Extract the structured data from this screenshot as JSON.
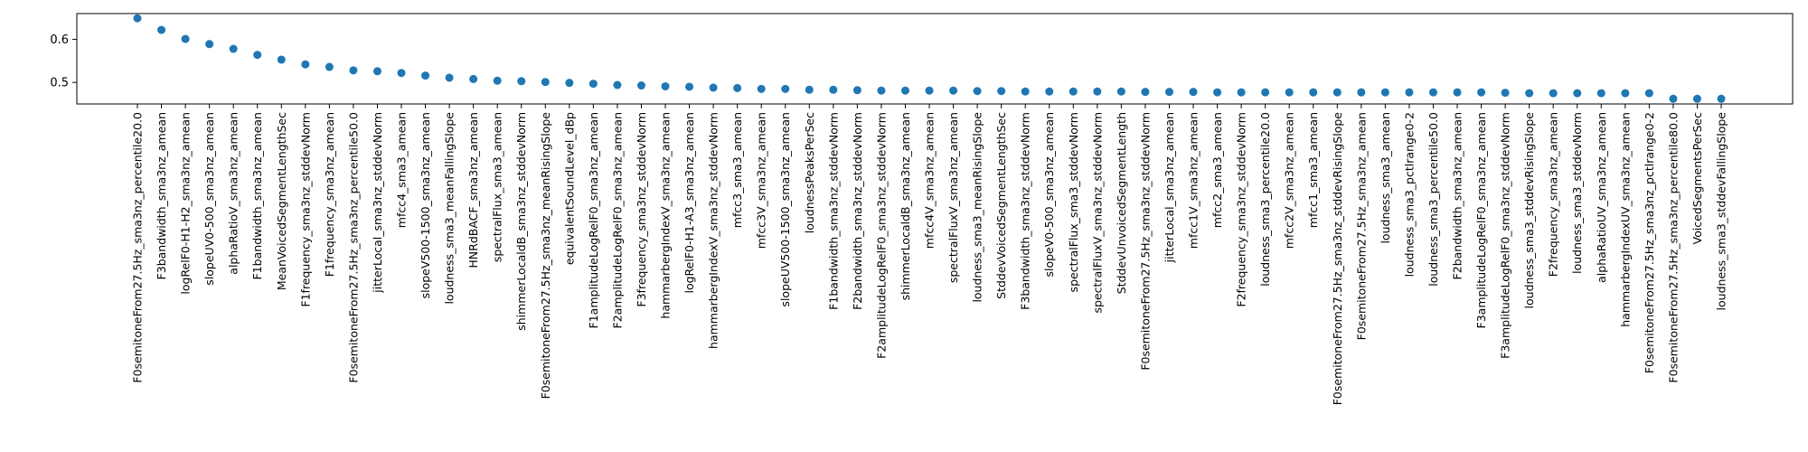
{
  "chart_data": {
    "type": "scatter",
    "title": "",
    "xlabel": "",
    "ylabel": "",
    "ylim": [
      0.45,
      0.66
    ],
    "yticks": [
      "0.5",
      "0.6"
    ],
    "grid": false,
    "marker_color": "#1f77b4",
    "categories": [
      "F0semitoneFrom27.5Hz_sma3nz_percentile20.0",
      "F3bandwidth_sma3nz_amean",
      "logRelF0-H1-H2_sma3nz_amean",
      "slopeUV0-500_sma3nz_amean",
      "alphaRatioV_sma3nz_amean",
      "F1bandwidth_sma3nz_amean",
      "MeanVoicedSegmentLengthSec",
      "F1frequency_sma3nz_stddevNorm",
      "F1frequency_sma3nz_amean",
      "F0semitoneFrom27.5Hz_sma3nz_percentile50.0",
      "jitterLocal_sma3nz_stddevNorm",
      "mfcc4_sma3_amean",
      "slopeV500-1500_sma3nz_amean",
      "loudness_sma3_meanFallingSlope",
      "HNRdBACF_sma3nz_amean",
      "spectralFlux_sma3_amean",
      "shimmerLocaldB_sma3nz_stddevNorm",
      "F0semitoneFrom27.5Hz_sma3nz_meanRisingSlope",
      "equivalentSoundLevel_dBp",
      "F1amplitudeLogRelF0_sma3nz_amean",
      "F2amplitudeLogRelF0_sma3nz_amean",
      "F3frequency_sma3nz_stddevNorm",
      "hammarbergIndexV_sma3nz_amean",
      "logRelF0-H1-A3_sma3nz_amean",
      "hammarbergIndexV_sma3nz_stddevNorm",
      "mfcc3_sma3_amean",
      "mfcc3V_sma3nz_amean",
      "slopeUV500-1500_sma3nz_amean",
      "loudnessPeaksPerSec",
      "F1bandwidth_sma3nz_stddevNorm",
      "F2bandwidth_sma3nz_stddevNorm",
      "F2amplitudeLogRelF0_sma3nz_stddevNorm",
      "shimmerLocaldB_sma3nz_amean",
      "mfcc4V_sma3nz_amean",
      "spectralFluxV_sma3nz_amean",
      "loudness_sma3_meanRisingSlope",
      "StddevVoicedSegmentLengthSec",
      "F3bandwidth_sma3nz_stddevNorm",
      "slopeV0-500_sma3nz_amean",
      "spectralFlux_sma3_stddevNorm",
      "spectralFluxV_sma3nz_stddevNorm",
      "StddevUnvoicedSegmentLength",
      "F0semitoneFrom27.5Hz_sma3nz_stddevNorm",
      "jitterLocal_sma3nz_amean",
      "mfcc1V_sma3nz_amean",
      "mfcc2_sma3_amean",
      "F2frequency_sma3nz_stddevNorm",
      "loudness_sma3_percentile20.0",
      "mfcc2V_sma3nz_amean",
      "mfcc1_sma3_amean",
      "F0semitoneFrom27.5Hz_sma3nz_stddevRisingSlope",
      "F0semitoneFrom27.5Hz_sma3nz_amean",
      "loudness_sma3_amean",
      "loudness_sma3_pctlrange0-2",
      "loudness_sma3_percentile50.0",
      "F2bandwidth_sma3nz_amean",
      "F3amplitudeLogRelF0_sma3nz_amean",
      "F3amplitudeLogRelF0_sma3nz_stddevNorm",
      "loudness_sma3_stddevRisingSlope",
      "F2frequency_sma3nz_amean",
      "loudness_sma3_stddevNorm",
      "alphaRatioUV_sma3nz_amean",
      "hammarbergIndexUV_sma3nz_amean",
      "F0semitoneFrom27.5Hz_sma3nz_pctlrange0-2",
      "F0semitoneFrom27.5Hz_sma3nz_percentile80.0",
      "VoicedSegmentsPerSec",
      "loudness_sma3_stddevFallingSlope"
    ],
    "values": [
      0.649,
      0.622,
      0.601,
      0.589,
      0.578,
      0.564,
      0.553,
      0.542,
      0.536,
      0.528,
      0.526,
      0.522,
      0.516,
      0.511,
      0.508,
      0.504,
      0.503,
      0.501,
      0.499,
      0.497,
      0.494,
      0.493,
      0.491,
      0.49,
      0.488,
      0.487,
      0.485,
      0.485,
      0.483,
      0.483,
      0.482,
      0.481,
      0.481,
      0.481,
      0.481,
      0.48,
      0.48,
      0.479,
      0.479,
      0.479,
      0.479,
      0.479,
      0.478,
      0.478,
      0.478,
      0.477,
      0.477,
      0.477,
      0.477,
      0.477,
      0.477,
      0.477,
      0.477,
      0.477,
      0.477,
      0.477,
      0.477,
      0.476,
      0.475,
      0.475,
      0.475,
      0.475,
      0.475,
      0.475,
      0.462,
      0.462,
      0.462
    ]
  }
}
